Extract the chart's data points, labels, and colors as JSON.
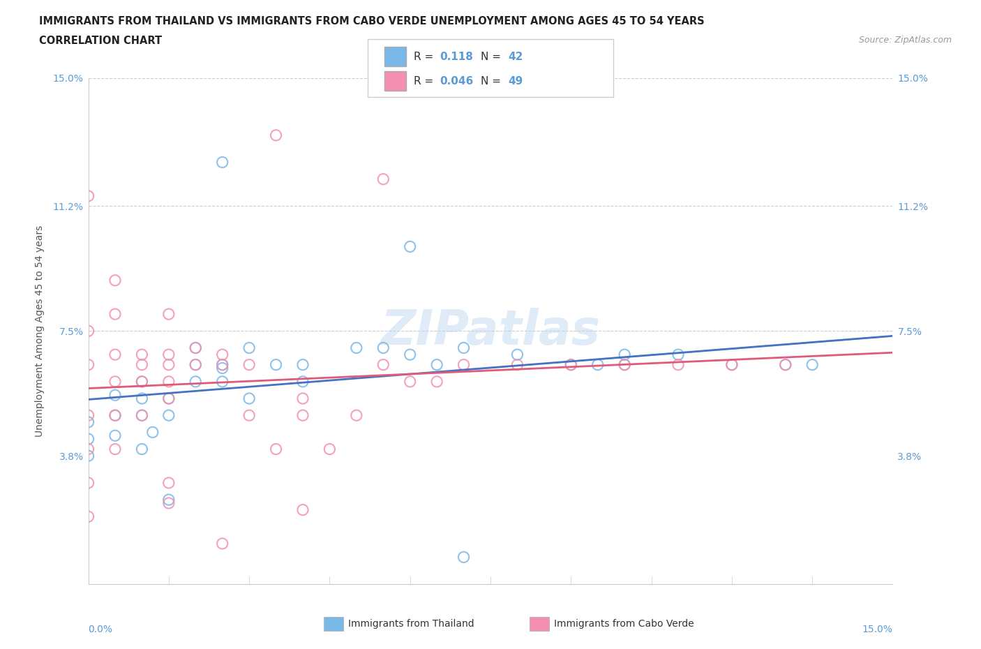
{
  "title_line1": "IMMIGRANTS FROM THAILAND VS IMMIGRANTS FROM CABO VERDE UNEMPLOYMENT AMONG AGES 45 TO 54 YEARS",
  "title_line2": "CORRELATION CHART",
  "source_text": "Source: ZipAtlas.com",
  "ylabel": "Unemployment Among Ages 45 to 54 years",
  "xlim": [
    0,
    0.15
  ],
  "ylim": [
    0,
    0.15
  ],
  "ytick_labels": [
    "3.8%",
    "7.5%",
    "11.2%",
    "15.0%"
  ],
  "ytick_values": [
    0.038,
    0.075,
    0.112,
    0.15
  ],
  "hgrid_values": [
    0.075,
    0.112,
    0.15
  ],
  "thailand_color": "#7ab8e8",
  "cabo_verde_color": "#f48fb1",
  "thailand_R": 0.118,
  "thailand_N": 42,
  "cabo_verde_R": 0.046,
  "cabo_verde_N": 49,
  "legend1_label": "Immigrants from Thailand",
  "legend2_label": "Immigrants from Cabo Verde",
  "thailand_scatter": [
    [
      0.0,
      0.048
    ],
    [
      0.0,
      0.038
    ],
    [
      0.0,
      0.043
    ],
    [
      0.005,
      0.044
    ],
    [
      0.005,
      0.05
    ],
    [
      0.005,
      0.056
    ],
    [
      0.01,
      0.04
    ],
    [
      0.01,
      0.05
    ],
    [
      0.01,
      0.055
    ],
    [
      0.01,
      0.06
    ],
    [
      0.012,
      0.045
    ],
    [
      0.015,
      0.05
    ],
    [
      0.015,
      0.055
    ],
    [
      0.02,
      0.06
    ],
    [
      0.02,
      0.065
    ],
    [
      0.02,
      0.07
    ],
    [
      0.025,
      0.06
    ],
    [
      0.025,
      0.065
    ],
    [
      0.03,
      0.055
    ],
    [
      0.03,
      0.07
    ],
    [
      0.035,
      0.065
    ],
    [
      0.04,
      0.06
    ],
    [
      0.04,
      0.065
    ],
    [
      0.05,
      0.07
    ],
    [
      0.055,
      0.07
    ],
    [
      0.06,
      0.068
    ],
    [
      0.065,
      0.065
    ],
    [
      0.07,
      0.07
    ],
    [
      0.08,
      0.068
    ],
    [
      0.09,
      0.065
    ],
    [
      0.095,
      0.065
    ],
    [
      0.1,
      0.065
    ],
    [
      0.1,
      0.068
    ],
    [
      0.11,
      0.068
    ],
    [
      0.12,
      0.065
    ],
    [
      0.13,
      0.065
    ],
    [
      0.135,
      0.065
    ],
    [
      0.025,
      0.125
    ],
    [
      0.06,
      0.1
    ],
    [
      0.025,
      0.064
    ],
    [
      0.015,
      0.025
    ],
    [
      0.07,
      0.008
    ]
  ],
  "cabo_verde_scatter": [
    [
      0.0,
      0.05
    ],
    [
      0.0,
      0.04
    ],
    [
      0.0,
      0.03
    ],
    [
      0.0,
      0.02
    ],
    [
      0.0,
      0.065
    ],
    [
      0.0,
      0.075
    ],
    [
      0.005,
      0.04
    ],
    [
      0.005,
      0.05
    ],
    [
      0.005,
      0.06
    ],
    [
      0.005,
      0.068
    ],
    [
      0.005,
      0.08
    ],
    [
      0.005,
      0.09
    ],
    [
      0.01,
      0.05
    ],
    [
      0.01,
      0.06
    ],
    [
      0.01,
      0.065
    ],
    [
      0.01,
      0.068
    ],
    [
      0.015,
      0.055
    ],
    [
      0.015,
      0.06
    ],
    [
      0.015,
      0.065
    ],
    [
      0.015,
      0.068
    ],
    [
      0.015,
      0.08
    ],
    [
      0.02,
      0.065
    ],
    [
      0.02,
      0.07
    ],
    [
      0.025,
      0.065
    ],
    [
      0.025,
      0.068
    ],
    [
      0.03,
      0.065
    ],
    [
      0.03,
      0.05
    ],
    [
      0.035,
      0.04
    ],
    [
      0.04,
      0.05
    ],
    [
      0.04,
      0.055
    ],
    [
      0.045,
      0.04
    ],
    [
      0.05,
      0.05
    ],
    [
      0.055,
      0.065
    ],
    [
      0.06,
      0.06
    ],
    [
      0.065,
      0.06
    ],
    [
      0.07,
      0.065
    ],
    [
      0.08,
      0.065
    ],
    [
      0.09,
      0.065
    ],
    [
      0.1,
      0.065
    ],
    [
      0.11,
      0.065
    ],
    [
      0.12,
      0.065
    ],
    [
      0.13,
      0.065
    ],
    [
      0.0,
      0.115
    ],
    [
      0.035,
      0.133
    ],
    [
      0.055,
      0.12
    ],
    [
      0.025,
      0.012
    ],
    [
      0.04,
      0.022
    ],
    [
      0.015,
      0.03
    ],
    [
      0.015,
      0.024
    ]
  ]
}
